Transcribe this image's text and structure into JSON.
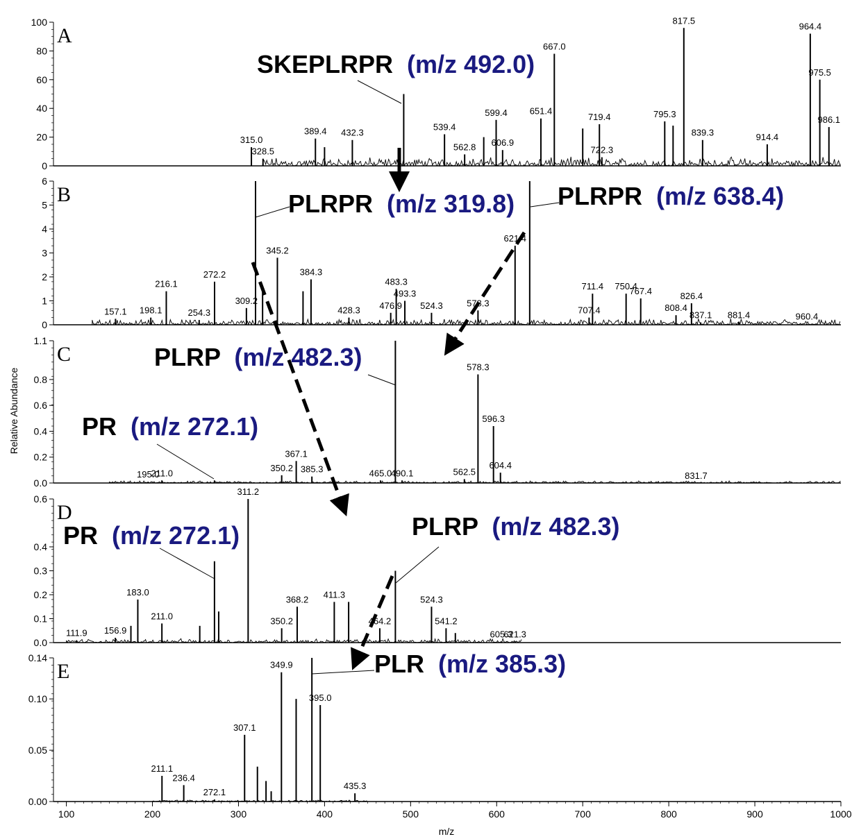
{
  "chart_data": {
    "type": "mass-spectrum",
    "x_axis": {
      "label": "m/z",
      "range": [
        85,
        1000
      ],
      "ticks": [
        100,
        200,
        300,
        400,
        500,
        600,
        700,
        800,
        900,
        1000
      ]
    },
    "y_axis_label": "Relative Abundance",
    "line_color": "#000000",
    "annotation_color": "#1a1a80",
    "panels": [
      {
        "id": "A",
        "letter": "A",
        "yrange": [
          0,
          100
        ],
        "yticks": [
          "0",
          "20",
          "40",
          "60",
          "80",
          "100"
        ],
        "yticks_values": [
          0,
          20,
          40,
          60,
          80,
          100
        ],
        "noise_range": [
          328,
          1000
        ],
        "noise_level": 3,
        "peaks": [
          {
            "mz": 315.0,
            "i": 13,
            "label": "315.0"
          },
          {
            "mz": 328.5,
            "i": 5,
            "label": "328.5"
          },
          {
            "mz": 389.4,
            "i": 19,
            "label": "389.4"
          },
          {
            "mz": 400.0,
            "i": 13
          },
          {
            "mz": 432.3,
            "i": 18,
            "label": "432.3"
          },
          {
            "mz": 492.0,
            "i": 50
          },
          {
            "mz": 539.4,
            "i": 22,
            "label": "539.4"
          },
          {
            "mz": 562.8,
            "i": 8,
            "label": "562.8"
          },
          {
            "mz": 585.0,
            "i": 20
          },
          {
            "mz": 599.4,
            "i": 32,
            "label": "599.4"
          },
          {
            "mz": 606.9,
            "i": 11,
            "label": "606.9"
          },
          {
            "mz": 651.4,
            "i": 33,
            "label": "651.4"
          },
          {
            "mz": 667.0,
            "i": 78,
            "label": "667.0"
          },
          {
            "mz": 700.0,
            "i": 26
          },
          {
            "mz": 719.4,
            "i": 29,
            "label": "719.4"
          },
          {
            "mz": 722.3,
            "i": 6,
            "label": "722.3"
          },
          {
            "mz": 795.3,
            "i": 31,
            "label": "795.3"
          },
          {
            "mz": 805.0,
            "i": 28
          },
          {
            "mz": 817.5,
            "i": 96,
            "label": "817.5"
          },
          {
            "mz": 839.3,
            "i": 18,
            "label": "839.3"
          },
          {
            "mz": 914.4,
            "i": 15,
            "label": "914.4"
          },
          {
            "mz": 964.4,
            "i": 92,
            "label": "964.4"
          },
          {
            "mz": 975.5,
            "i": 60,
            "label": "975.5"
          },
          {
            "mz": 986.1,
            "i": 27,
            "label": "986.1"
          }
        ]
      },
      {
        "id": "B",
        "letter": "B",
        "yrange": [
          0,
          6
        ],
        "yticks": [
          "0",
          "1",
          "2",
          "3",
          "4",
          "5",
          "6"
        ],
        "yticks_values": [
          0,
          1,
          2,
          3,
          4,
          5,
          6
        ],
        "noise_range": [
          130,
          1000
        ],
        "noise_level": 0.12,
        "peaks": [
          {
            "mz": 157.1,
            "i": 0.25,
            "label": "157.1"
          },
          {
            "mz": 198.1,
            "i": 0.3,
            "label": "198.1"
          },
          {
            "mz": 216.1,
            "i": 1.4,
            "label": "216.1"
          },
          {
            "mz": 254.3,
            "i": 0.2,
            "label": "254.3"
          },
          {
            "mz": 272.2,
            "i": 1.8,
            "label": "272.2"
          },
          {
            "mz": 309.2,
            "i": 0.7,
            "label": "309.2"
          },
          {
            "mz": 319.8,
            "i": 6.0
          },
          {
            "mz": 328.0,
            "i": 1.5
          },
          {
            "mz": 345.2,
            "i": 2.8,
            "label": "345.2"
          },
          {
            "mz": 375.0,
            "i": 1.4
          },
          {
            "mz": 384.3,
            "i": 1.9,
            "label": "384.3"
          },
          {
            "mz": 428.3,
            "i": 0.3,
            "label": "428.3"
          },
          {
            "mz": 476.9,
            "i": 0.5,
            "label": "476.9"
          },
          {
            "mz": 483.3,
            "i": 1.5,
            "label": "483.3"
          },
          {
            "mz": 493.3,
            "i": 1.0,
            "label": "493.3"
          },
          {
            "mz": 524.3,
            "i": 0.5,
            "label": "524.3"
          },
          {
            "mz": 578.3,
            "i": 0.6,
            "label": "578.3"
          },
          {
            "mz": 621.4,
            "i": 3.3,
            "label": "621.4"
          },
          {
            "mz": 638.4,
            "i": 6.0
          },
          {
            "mz": 707.4,
            "i": 0.3,
            "label": "707.4"
          },
          {
            "mz": 711.4,
            "i": 1.3,
            "label": "711.4"
          },
          {
            "mz": 750.4,
            "i": 1.3,
            "label": "750.4"
          },
          {
            "mz": 767.4,
            "i": 1.1,
            "label": "767.4"
          },
          {
            "mz": 808.4,
            "i": 0.4,
            "label": "808.4"
          },
          {
            "mz": 826.4,
            "i": 0.9,
            "label": "826.4"
          },
          {
            "mz": 837.1,
            "i": 0.1,
            "label": "837.1"
          },
          {
            "mz": 881.4,
            "i": 0.1,
            "label": "881.4"
          },
          {
            "mz": 960.4,
            "i": 0.05,
            "label": "960.4"
          }
        ]
      },
      {
        "id": "C",
        "letter": "C",
        "yrange": [
          0,
          1.1
        ],
        "yticks": [
          "0.0",
          "0.2",
          "0.4",
          "0.6",
          "0.8",
          "1.1"
        ],
        "yticks_values": [
          0,
          0.2,
          0.4,
          0.6,
          0.8,
          1.1
        ],
        "noise_range": [
          150,
          1000
        ],
        "noise_level": 0.008,
        "peaks": [
          {
            "mz": 195.0,
            "i": 0.01,
            "label": "195.0"
          },
          {
            "mz": 211.0,
            "i": 0.02,
            "label": "211.0"
          },
          {
            "mz": 272.1,
            "i": 0.02
          },
          {
            "mz": 350.2,
            "i": 0.06,
            "label": "350.2"
          },
          {
            "mz": 367.1,
            "i": 0.17,
            "label": "367.1"
          },
          {
            "mz": 385.3,
            "i": 0.05,
            "label": "385.3"
          },
          {
            "mz": 465.0,
            "i": 0.02,
            "label": "465.0"
          },
          {
            "mz": 482.3,
            "i": 1.1
          },
          {
            "mz": 490.1,
            "i": 0.02,
            "label": "490.1"
          },
          {
            "mz": 562.5,
            "i": 0.03,
            "label": "562.5"
          },
          {
            "mz": 578.3,
            "i": 0.84,
            "label": "578.3"
          },
          {
            "mz": 596.3,
            "i": 0.44,
            "label": "596.3"
          },
          {
            "mz": 604.4,
            "i": 0.08,
            "label": "604.4"
          },
          {
            "mz": 831.7,
            "i": 0.0,
            "label": "831.7"
          }
        ]
      },
      {
        "id": "D",
        "letter": "D",
        "yrange": [
          0,
          0.6
        ],
        "yticks": [
          "0.0",
          "0.1",
          "0.2",
          "0.3",
          "0.4",
          "0.6"
        ],
        "yticks_values": [
          0,
          0.1,
          0.2,
          0.3,
          0.4,
          0.6
        ],
        "noise_range": [
          100,
          630
        ],
        "noise_level": 0.008,
        "peaks": [
          {
            "mz": 111.9,
            "i": 0.01,
            "label": "111.9"
          },
          {
            "mz": 156.9,
            "i": 0.02,
            "label": "156.9"
          },
          {
            "mz": 175.0,
            "i": 0.07
          },
          {
            "mz": 183.0,
            "i": 0.18,
            "label": "183.0"
          },
          {
            "mz": 211.0,
            "i": 0.08,
            "label": "211.0"
          },
          {
            "mz": 255.0,
            "i": 0.07
          },
          {
            "mz": 272.1,
            "i": 0.34
          },
          {
            "mz": 277.0,
            "i": 0.13
          },
          {
            "mz": 311.2,
            "i": 0.6,
            "label": "311.2"
          },
          {
            "mz": 350.2,
            "i": 0.06,
            "label": "350.2"
          },
          {
            "mz": 368.2,
            "i": 0.15,
            "label": "368.2"
          },
          {
            "mz": 411.3,
            "i": 0.17,
            "label": "411.3"
          },
          {
            "mz": 428.0,
            "i": 0.17
          },
          {
            "mz": 464.2,
            "i": 0.06,
            "label": "464.2"
          },
          {
            "mz": 482.3,
            "i": 0.3
          },
          {
            "mz": 524.3,
            "i": 0.15,
            "label": "524.3"
          },
          {
            "mz": 541.2,
            "i": 0.06,
            "label": "541.2"
          },
          {
            "mz": 552.0,
            "i": 0.04
          },
          {
            "mz": 605.3,
            "i": 0.005,
            "label": "605.3"
          },
          {
            "mz": 621.3,
            "i": 0.005,
            "label": "621.3"
          }
        ]
      },
      {
        "id": "E",
        "letter": "E",
        "yrange": [
          0,
          0.14
        ],
        "yticks": [
          "0.00",
          "0.05",
          "0.10",
          "0.14"
        ],
        "yticks_values": [
          0,
          0.05,
          0.1,
          0.14
        ],
        "noise_range": [
          200,
          450
        ],
        "noise_level": 0.0008,
        "peaks": [
          {
            "mz": 211.1,
            "i": 0.025,
            "label": "211.1"
          },
          {
            "mz": 236.4,
            "i": 0.016,
            "label": "236.4"
          },
          {
            "mz": 272.1,
            "i": 0.002,
            "label": "272.1"
          },
          {
            "mz": 307.1,
            "i": 0.065,
            "label": "307.1"
          },
          {
            "mz": 322.0,
            "i": 0.034
          },
          {
            "mz": 332.0,
            "i": 0.02
          },
          {
            "mz": 338.0,
            "i": 0.01
          },
          {
            "mz": 349.9,
            "i": 0.126,
            "label": "349.9"
          },
          {
            "mz": 367.0,
            "i": 0.1
          },
          {
            "mz": 385.3,
            "i": 0.14
          },
          {
            "mz": 395.0,
            "i": 0.094,
            "label": "395.0"
          },
          {
            "mz": 435.3,
            "i": 0.008,
            "label": "435.3"
          }
        ]
      }
    ],
    "annotations": [
      {
        "panel": "A",
        "peptide": "SKEPLRPR",
        "mz_text": "(m/z 492.0)"
      },
      {
        "panel": "B",
        "peptide": "PLRPR",
        "mz_text": "(m/z 319.8)"
      },
      {
        "panel": "B",
        "peptide": "PLRPR",
        "mz_text": "(m/z 638.4)"
      },
      {
        "panel": "C",
        "peptide": "PLRP",
        "mz_text": "(m/z 482.3)"
      },
      {
        "panel": "C",
        "peptide": "PR",
        "mz_text": "(m/z 272.1)"
      },
      {
        "panel": "D",
        "peptide": "PR",
        "mz_text": "(m/z 272.1)"
      },
      {
        "panel": "D",
        "peptide": "PLRP",
        "mz_text": "(m/z 482.3)"
      },
      {
        "panel": "E",
        "peptide": "PLR",
        "mz_text": "(m/z 385.3)"
      }
    ]
  }
}
